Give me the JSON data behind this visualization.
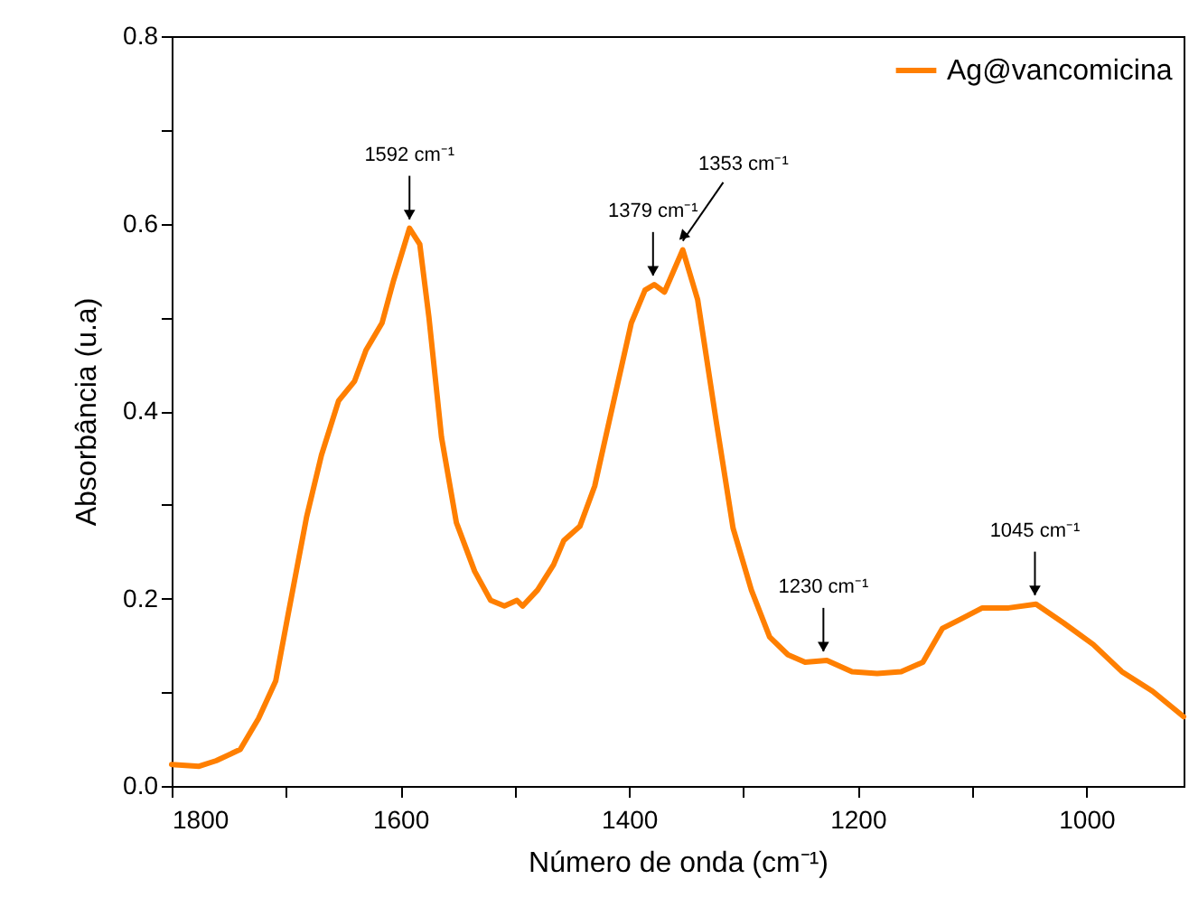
{
  "chart_data": {
    "type": "line",
    "xlabel": "Número de onda (cm⁻¹)",
    "ylabel": "Absorbância (u.a)",
    "xlim": [
      1800,
      915
    ],
    "ylim": [
      0,
      0.8
    ],
    "xticks": [
      1800,
      {
        "value": 1700,
        "label": null
      },
      1600,
      {
        "value": 1500,
        "label": null
      },
      1400,
      {
        "value": 1300,
        "label": null
      },
      1200,
      {
        "value": 1100,
        "label": null
      },
      1000
    ],
    "yticks": [
      {
        "value": 0,
        "label": "0.0"
      },
      {
        "value": 0.1,
        "label": null
      },
      0.2,
      {
        "value": 0.3,
        "label": null
      },
      0.4,
      {
        "value": 0.5,
        "label": null
      },
      0.6,
      {
        "value": 0.7,
        "label": null
      },
      0.8
    ],
    "grid": false,
    "legend": "top right",
    "marker": "none",
    "line_style": "solid",
    "series": [
      {
        "name": "Ag@vancomicina",
        "color": "#ff7f00",
        "x": [
          1800,
          1776,
          1761,
          1740,
          1724,
          1709,
          1698,
          1682,
          1669,
          1654,
          1640,
          1630,
          1616,
          1606,
          1592,
          1583,
          1575,
          1564,
          1551,
          1535,
          1521,
          1509,
          1498,
          1493,
          1480,
          1466,
          1457,
          1443,
          1430,
          1417,
          1398,
          1386,
          1378,
          1369,
          1353,
          1340,
          1324,
          1309,
          1293,
          1277,
          1261,
          1246,
          1227,
          1205,
          1183,
          1162,
          1143,
          1126,
          1110,
          1091,
          1068,
          1044,
          1020,
          994,
          969,
          942,
          915
        ],
        "values": [
          0.023,
          0.021,
          0.027,
          0.039,
          0.072,
          0.112,
          0.184,
          0.287,
          0.353,
          0.411,
          0.432,
          0.465,
          0.494,
          0.539,
          0.595,
          0.578,
          0.5,
          0.372,
          0.281,
          0.229,
          0.198,
          0.192,
          0.198,
          0.192,
          0.209,
          0.236,
          0.262,
          0.277,
          0.32,
          0.391,
          0.494,
          0.529,
          0.535,
          0.527,
          0.572,
          0.519,
          0.391,
          0.275,
          0.209,
          0.159,
          0.14,
          0.132,
          0.134,
          0.122,
          0.12,
          0.122,
          0.132,
          0.168,
          0.178,
          0.19,
          0.19,
          0.194,
          0.174,
          0.151,
          0.122,
          0.101,
          0.074
        ]
      }
    ],
    "annotations": [
      {
        "text": "1592 cm⁻¹",
        "x": 1592,
        "y": 0.595
      },
      {
        "text": "1379 cm⁻¹",
        "x": 1379,
        "y": 0.535
      },
      {
        "text": "1353 cm⁻¹",
        "x": 1353,
        "y": 0.572
      },
      {
        "text": "1230 cm⁻¹",
        "x": 1230,
        "y": 0.134
      },
      {
        "text": "1045 cm⁻¹",
        "x": 1045,
        "y": 0.194
      }
    ]
  }
}
